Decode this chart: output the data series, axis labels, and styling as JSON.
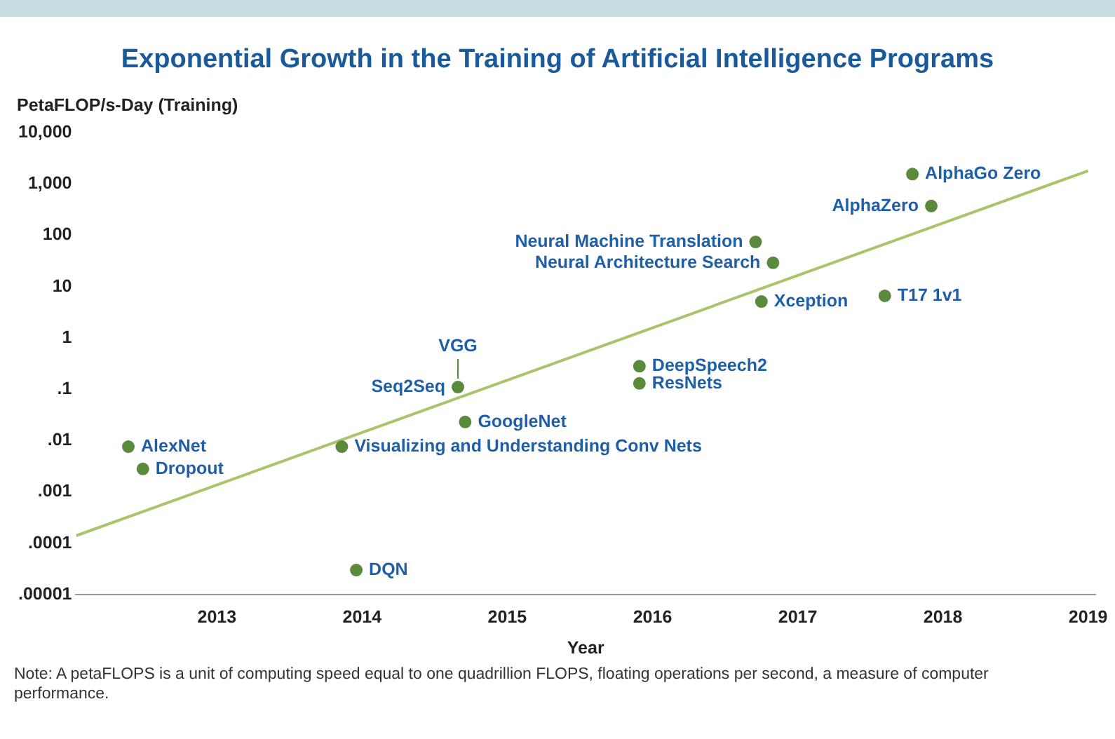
{
  "chart_data": {
    "type": "scatter",
    "title": "Exponential Growth in the Training of Artificial Intelligence Programs",
    "ylabel": "PetaFLOP/s-Day (Training)",
    "xlabel": "Year",
    "log": "y",
    "grid": false,
    "legend": false,
    "marker": "circle",
    "xlim": [
      2012.03,
      2019.05
    ],
    "xticks": [
      2013,
      2014,
      2015,
      2016,
      2017,
      2018,
      2019
    ],
    "ylim": [
      1e-05,
      10000
    ],
    "yticks": [
      {
        "value": 1e-05,
        "label": ".00001"
      },
      {
        "value": 0.0001,
        "label": ".0001"
      },
      {
        "value": 0.001,
        "label": ".001"
      },
      {
        "value": 0.01,
        "label": ".01"
      },
      {
        "value": 0.1,
        "label": ".1"
      },
      1,
      10,
      100,
      {
        "value": 1000,
        "label": "1,000"
      },
      {
        "value": 10000,
        "label": "10,000"
      }
    ],
    "series": [
      {
        "color": "#5b8a3c",
        "x": [
          2012.39,
          2012.49,
          2013.96,
          2013.86,
          2014.71,
          2014.66,
          2015.91,
          2015.91,
          2016.71,
          2016.83,
          2016.75,
          2017.6,
          2017.92,
          2017.79
        ],
        "values": [
          0.0076,
          0.0028,
          3e-05,
          0.0076,
          0.023,
          0.11,
          0.28,
          0.13,
          74,
          29,
          5.1,
          6.6,
          370,
          1550
        ]
      },
      {
        "type": "line",
        "marker": "none",
        "color": "#a9c46c",
        "x": [
          2012.03,
          2019
        ],
        "values": [
          0.00014,
          1800
        ]
      }
    ],
    "annotations": [
      {
        "text": "AlexNet",
        "x": 2012.39,
        "y": 0.0076
      },
      {
        "text": "Dropout",
        "x": 2012.49,
        "y": 0.0028
      },
      {
        "text": "DQN",
        "x": 2013.96,
        "y": 3e-05
      },
      {
        "text": "Visualizing and Understanding Conv Nets",
        "x": 2013.86,
        "y": 0.0076
      },
      {
        "text": "GoogleNet",
        "x": 2014.71,
        "y": 0.023
      },
      {
        "text": "Seq2Seq",
        "x": 2014.66,
        "y": 0.11
      },
      {
        "text": "VGG",
        "x": 2014.66,
        "y": 0.11
      },
      {
        "text": "DeepSpeech2",
        "x": 2015.91,
        "y": 0.28
      },
      {
        "text": "ResNets",
        "x": 2015.91,
        "y": 0.13
      },
      {
        "text": "Neural Machine Translation",
        "x": 2016.71,
        "y": 74
      },
      {
        "text": "Neural Architecture Search",
        "x": 2016.83,
        "y": 29
      },
      {
        "text": "Xception",
        "x": 2016.75,
        "y": 5.1
      },
      {
        "text": "T17 1v1",
        "x": 2017.6,
        "y": 6.6
      },
      {
        "text": "AlphaZero",
        "x": 2017.92,
        "y": 370
      },
      {
        "text": "AlphaGo Zero",
        "x": 2017.79,
        "y": 1550
      },
      "Note: A petaFLOPS is a unit of computing speed equal to one quadrillion FLOPS, floating operations per second, a measure of computer performance."
    ]
  }
}
